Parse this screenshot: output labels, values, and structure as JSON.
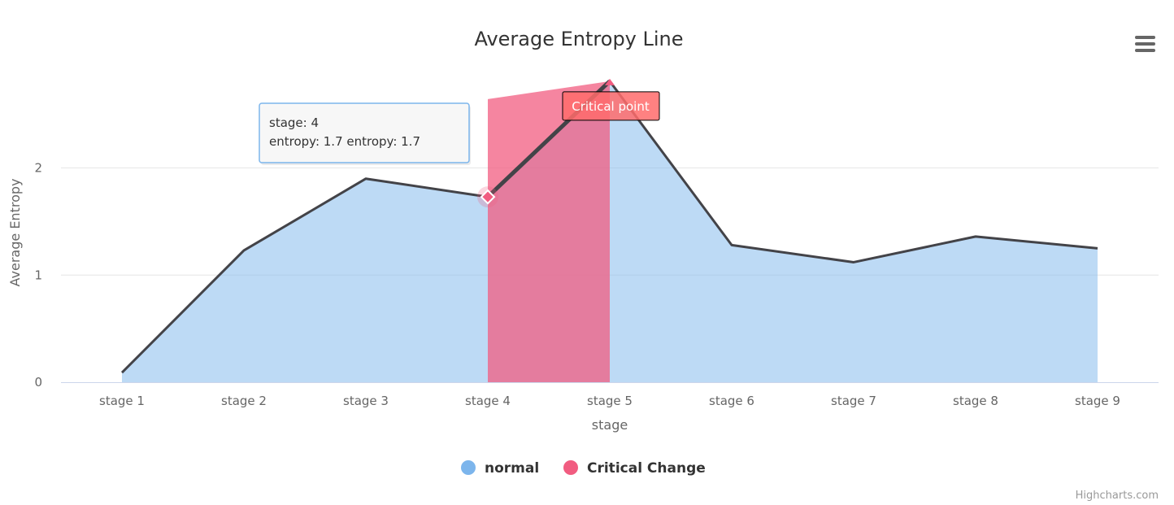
{
  "chart_data": {
    "type": "area",
    "title": "Average Entropy Line",
    "xlabel": "stage",
    "ylabel": "Average Entropy",
    "categories": [
      "stage 1",
      "stage 2",
      "stage 3",
      "stage 4",
      "stage 5",
      "stage 6",
      "stage 7",
      "stage 8",
      "stage 9"
    ],
    "ylim": [
      0,
      2.9
    ],
    "yticks": [
      0,
      1,
      2
    ],
    "grid": true,
    "legend_position": "bottom-center",
    "series": [
      {
        "name": "normal",
        "color": "#7cb5ec",
        "values": [
          0.09,
          1.23,
          1.9,
          1.73,
          2.81,
          1.28,
          1.12,
          1.36,
          1.25
        ]
      },
      {
        "name": "Critical Change",
        "color": "#f15c80",
        "values": [
          null,
          null,
          null,
          1.73,
          2.81,
          null,
          null,
          null,
          null
        ]
      }
    ],
    "line_color": "#434348",
    "highlight_color": "#f7a35c",
    "annotation": {
      "text": "Critical point",
      "category_index": 4,
      "value": 2.81
    },
    "tooltip": {
      "category_index": 3,
      "value": 1.73,
      "line1": "stage: 4",
      "line2": "entropy:  1.7 entropy:  1.7"
    },
    "credits": "Highcharts.com"
  },
  "icons": {
    "menu": "hamburger-menu-icon"
  }
}
